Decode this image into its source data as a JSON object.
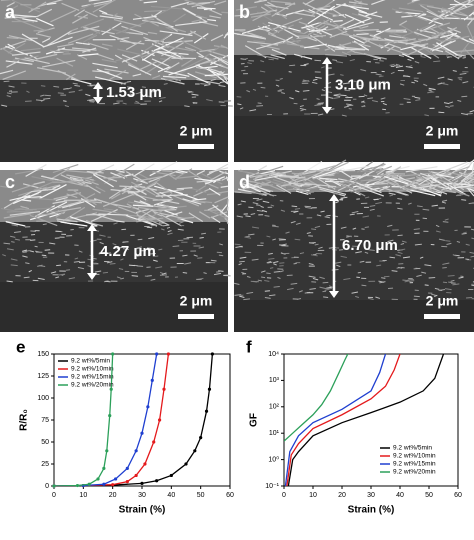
{
  "panels": [
    {
      "letter": "a",
      "thickness": "1.53 μm",
      "scale": "2 μm"
    },
    {
      "letter": "b",
      "thickness": "3.10 μm",
      "scale": "2 μm"
    },
    {
      "letter": "c",
      "thickness": "4.27 μm",
      "scale": "2 μm"
    },
    {
      "letter": "d",
      "thickness": "6.70 μm",
      "scale": "2 μm"
    }
  ],
  "chart_data": [
    {
      "type": "line",
      "panel_label": "e",
      "x_label": "Strain (%)",
      "y_label": "R/R₀",
      "xlim": [
        0,
        60
      ],
      "xticks": [
        0,
        10,
        20,
        30,
        40,
        50,
        60
      ],
      "ylim": [
        0,
        150
      ],
      "yticks": [
        0,
        25,
        50,
        75,
        100,
        125,
        150
      ],
      "legend": "upper left",
      "series": [
        {
          "name": "9.2 wt%/5min",
          "color": "#000000",
          "x": [
            0,
            10,
            20,
            30,
            35,
            40,
            45,
            48,
            50,
            52,
            53,
            54
          ],
          "values": [
            0,
            0.5,
            1,
            3,
            6,
            12,
            25,
            40,
            55,
            85,
            110,
            150
          ]
        },
        {
          "name": "9.2 wt%/10min",
          "color": "#e41a1c",
          "x": [
            0,
            10,
            20,
            25,
            28,
            31,
            34,
            36,
            37.5,
            39
          ],
          "values": [
            0,
            0.5,
            1.5,
            5,
            12,
            25,
            50,
            75,
            110,
            150
          ]
        },
        {
          "name": "9.2 wt%/15min",
          "color": "#1f3fd0",
          "x": [
            0,
            10,
            17,
            21,
            25,
            28,
            30,
            32,
            33.5,
            35
          ],
          "values": [
            0,
            0.5,
            2,
            8,
            20,
            40,
            60,
            90,
            120,
            150
          ]
        },
        {
          "name": "9.2 wt%/20min",
          "color": "#2ca05a",
          "x": [
            0,
            8,
            12,
            15,
            17,
            18,
            19,
            19.5,
            20
          ],
          "values": [
            0,
            0.5,
            2,
            8,
            20,
            40,
            80,
            110,
            150
          ]
        }
      ]
    },
    {
      "type": "line",
      "panel_label": "f",
      "x_label": "Strain (%)",
      "y_label": "GF",
      "log_y": true,
      "xlim": [
        0,
        60
      ],
      "xticks": [
        0,
        10,
        20,
        30,
        40,
        50,
        60
      ],
      "ylim": [
        0.1,
        10000
      ],
      "yticks": [
        {
          "value": 0.1,
          "label": "10⁻¹"
        },
        {
          "value": 1,
          "label": "10⁰"
        },
        {
          "value": 10,
          "label": "10¹"
        },
        {
          "value": 100,
          "label": "10²"
        },
        {
          "value": 1000,
          "label": "10³"
        },
        {
          "value": 10000,
          "label": "10⁴"
        }
      ],
      "legend": "lower right",
      "series": [
        {
          "name": "9.2 wt%/5min",
          "color": "#000000",
          "x": [
            1.5,
            3,
            5,
            10,
            20,
            30,
            40,
            48,
            52,
            55
          ],
          "values": [
            0.1,
            1,
            2,
            8,
            25,
            60,
            150,
            400,
            1200,
            10000
          ]
        },
        {
          "name": "9.2 wt%/10min",
          "color": "#e41a1c",
          "x": [
            1,
            2.5,
            5,
            10,
            20,
            30,
            35,
            38,
            40
          ],
          "values": [
            0.1,
            1.5,
            4,
            15,
            50,
            200,
            600,
            2500,
            10000
          ]
        },
        {
          "name": "9.2 wt%/15min",
          "color": "#1f3fd0",
          "x": [
            0.5,
            2,
            5,
            10,
            20,
            30,
            33,
            35
          ],
          "values": [
            0.1,
            2,
            8,
            25,
            80,
            400,
            2000,
            10000
          ]
        },
        {
          "name": "9.2 wt%/20min",
          "color": "#2ca05a",
          "x": [
            0,
            3,
            6,
            10,
            13,
            16,
            19,
            21,
            22
          ],
          "values": [
            5,
            10,
            20,
            50,
            120,
            400,
            2000,
            6000,
            10000
          ]
        }
      ]
    }
  ]
}
